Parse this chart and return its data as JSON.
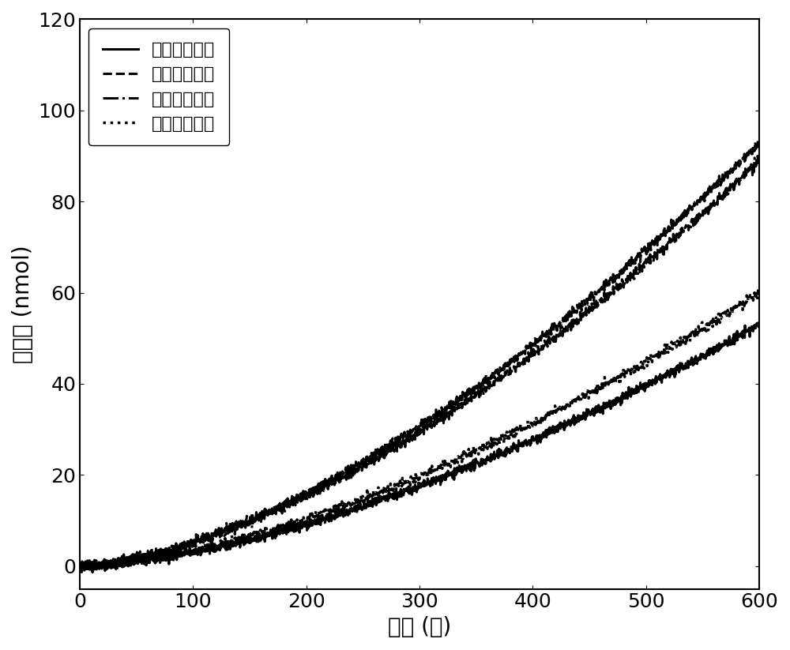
{
  "xlabel": "时间 (秒)",
  "ylabel": "氧气量 (nmol)",
  "xlim": [
    0,
    600
  ],
  "ylim": [
    -5,
    120
  ],
  "xticks": [
    0,
    100,
    200,
    300,
    400,
    500,
    600
  ],
  "yticks": [
    0,
    20,
    40,
    60,
    80,
    100,
    120
  ],
  "series": [
    {
      "label": "未组装水凝胶",
      "linestyle": "-",
      "linewidth": 2.2,
      "end_val": 53,
      "power": 1.6,
      "color": "#000000",
      "seed": 42
    },
    {
      "label": "蓝色光子晶体",
      "linestyle": "--",
      "linewidth": 2.2,
      "end_val": 93,
      "power": 1.6,
      "color": "#000000",
      "seed": 43
    },
    {
      "label": "红色光子晶体",
      "linestyle": "-.",
      "linewidth": 2.2,
      "end_val": 89,
      "power": 1.6,
      "color": "#000000",
      "seed": 44
    },
    {
      "label": "绿色光子晶体",
      "linestyle": ":",
      "linewidth": 2.5,
      "end_val": 60,
      "power": 1.6,
      "color": "#000000",
      "seed": 45
    }
  ],
  "legend_fontsize": 16,
  "axis_fontsize": 20,
  "tick_fontsize": 18,
  "noise_scale": 0.5,
  "figsize": [
    10.0,
    8.23
  ],
  "dpi": 100
}
